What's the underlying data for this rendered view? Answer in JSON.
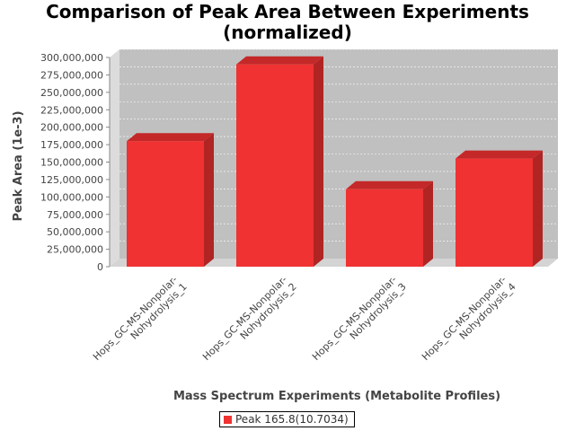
{
  "chart_data": {
    "type": "bar",
    "title_lines": [
      "Comparison of Peak Area Between Experiments",
      "(normalized)"
    ],
    "xlabel": "Mass Spectrum Experiments (Metabolite Profiles)",
    "ylabel": "Peak Area (1e-3)",
    "categories": [
      [
        "Hops_GC-MS-Nonpolar-",
        "Nohydrolysis_1"
      ],
      [
        "Hops_GC-MS-Nonpolar-",
        "Nohydrolysis_2"
      ],
      [
        "Hops_GC-MS-Nonpolar-",
        "Nohydrolysis_3"
      ],
      [
        "Hops_GC-MS-Nonpolar-",
        "Nohydrolysis_4"
      ]
    ],
    "series": [
      {
        "name": "Peak 165.8(10.7034)",
        "values": [
          180000000,
          290000000,
          111000000,
          155000000
        ]
      }
    ],
    "ylim": [
      0,
      300000000
    ],
    "yticks": [
      0,
      25000000,
      50000000,
      75000000,
      100000000,
      125000000,
      150000000,
      175000000,
      200000000,
      225000000,
      250000000,
      275000000,
      300000000
    ],
    "ytick_labels": [
      "0",
      "25,000,000",
      "50,000,000",
      "75,000,000",
      "100,000,000",
      "125,000,000",
      "150,000,000",
      "175,000,000",
      "200,000,000",
      "225,000,000",
      "250,000,000",
      "275,000,000",
      "300,000,000"
    ],
    "grid": true,
    "legend_position": "bottom",
    "colors": {
      "bar_front": "#f03232",
      "bar_top": "#c42828",
      "bar_side": "#b02424",
      "plot_bg": "#c0c0c0",
      "wall_side": "#dcdcdc",
      "floor": "#d4d4d4",
      "grid": "#ffffff"
    }
  }
}
